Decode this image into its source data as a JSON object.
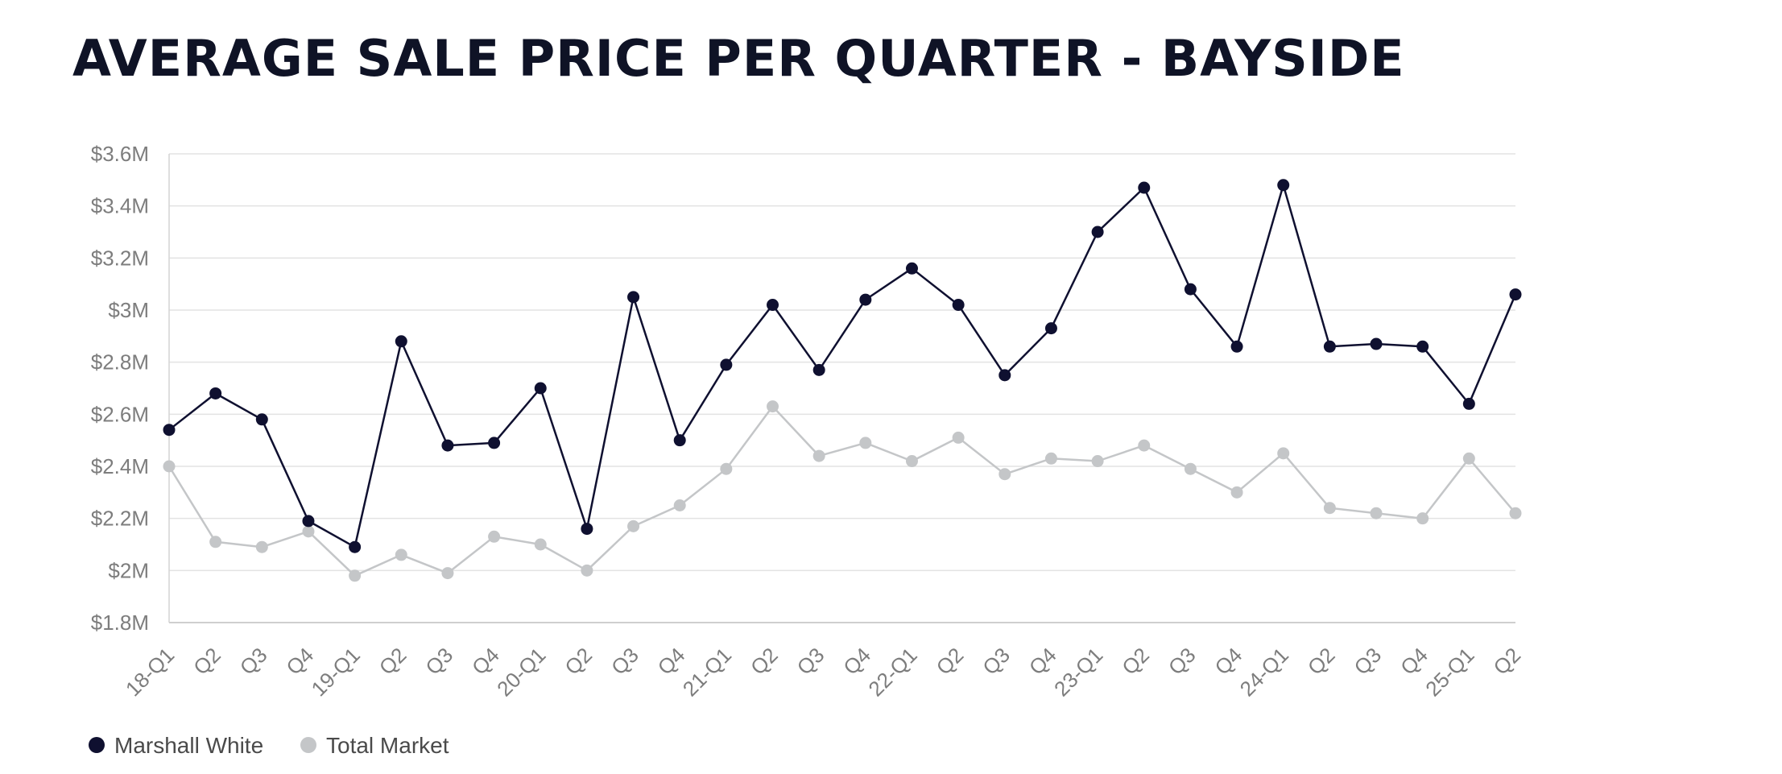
{
  "chart_data": {
    "type": "line",
    "title": "AVERAGE SALE PRICE PER QUARTER - BAYSIDE",
    "xlabel": "",
    "ylabel": "",
    "ylim": [
      1.8,
      3.6
    ],
    "y_ticks": [
      {
        "value": 3.6,
        "label": "$3.6M"
      },
      {
        "value": 3.4,
        "label": "$3.4M"
      },
      {
        "value": 3.2,
        "label": "$3.2M"
      },
      {
        "value": 3.0,
        "label": "$3M"
      },
      {
        "value": 2.8,
        "label": "$2.8M"
      },
      {
        "value": 2.6,
        "label": "$2.6M"
      },
      {
        "value": 2.4,
        "label": "$2.4M"
      },
      {
        "value": 2.2,
        "label": "$2.2M"
      },
      {
        "value": 2.0,
        "label": "$2M"
      },
      {
        "value": 1.8,
        "label": "$1.8M"
      }
    ],
    "categories": [
      "18-Q1",
      "Q2",
      "Q3",
      "Q4",
      "19-Q1",
      "Q2",
      "Q3",
      "Q4",
      "20-Q1",
      "Q2",
      "Q3",
      "Q4",
      "21-Q1",
      "Q2",
      "Q3",
      "Q4",
      "22-Q1",
      "Q2",
      "Q3",
      "Q4",
      "23-Q1",
      "Q2",
      "Q3",
      "Q4",
      "24-Q1",
      "Q2",
      "Q3",
      "Q4",
      "25-Q1",
      "Q2"
    ],
    "grid": true,
    "legend_position": "bottom-left",
    "series": [
      {
        "name": "Marshall White",
        "color": "#0f1030",
        "values": [
          2.54,
          2.68,
          2.58,
          2.19,
          2.09,
          2.88,
          2.48,
          2.49,
          2.7,
          2.16,
          3.05,
          2.5,
          2.79,
          3.02,
          2.77,
          3.04,
          3.16,
          3.02,
          2.75,
          2.93,
          3.3,
          3.47,
          3.08,
          2.86,
          3.48,
          2.86,
          2.87,
          2.86,
          2.64,
          3.06
        ]
      },
      {
        "name": "Total Market",
        "color": "#c4c6c8",
        "values": [
          2.4,
          2.11,
          2.09,
          2.15,
          1.98,
          2.06,
          1.99,
          2.13,
          2.1,
          2.0,
          2.17,
          2.25,
          2.39,
          2.63,
          2.44,
          2.49,
          2.42,
          2.51,
          2.37,
          2.43,
          2.42,
          2.48,
          2.39,
          2.3,
          2.45,
          2.24,
          2.22,
          2.2,
          2.43,
          2.22
        ]
      }
    ]
  }
}
